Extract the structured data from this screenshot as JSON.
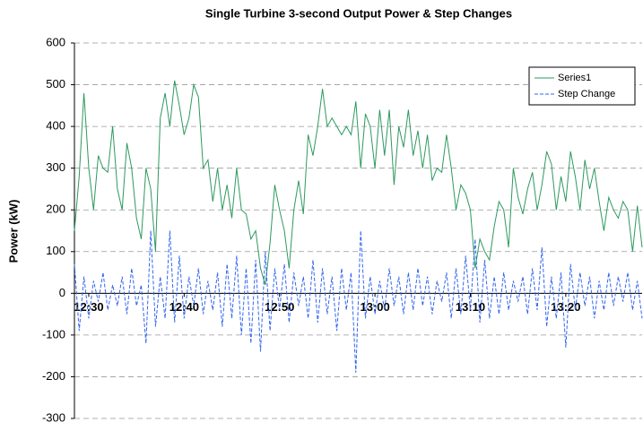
{
  "chart_data": {
    "type": "line",
    "title": "Single Turbine 3-second Output Power & Step Changes",
    "y_label": "Power (kW)",
    "categories": [
      null,
      null,
      null,
      "12:30",
      null,
      null,
      null,
      null,
      null,
      null,
      null,
      null,
      null,
      null,
      null,
      null,
      null,
      null,
      null,
      null,
      null,
      null,
      null,
      "12:40",
      null,
      null,
      null,
      null,
      null,
      null,
      null,
      null,
      null,
      null,
      null,
      null,
      null,
      null,
      null,
      null,
      null,
      null,
      null,
      "12:50",
      null,
      null,
      null,
      null,
      null,
      null,
      null,
      null,
      null,
      null,
      null,
      null,
      null,
      null,
      null,
      null,
      null,
      null,
      null,
      "13:00",
      null,
      null,
      null,
      null,
      null,
      null,
      null,
      null,
      null,
      null,
      null,
      null,
      null,
      null,
      null,
      null,
      null,
      null,
      null,
      "13:10",
      null,
      null,
      null,
      null,
      null,
      null,
      null,
      null,
      null,
      null,
      null,
      null,
      null,
      null,
      null,
      null,
      null,
      null,
      null,
      "13:20",
      null,
      null,
      null,
      null,
      null,
      null,
      null,
      null,
      null,
      null,
      null,
      null,
      null,
      null,
      null,
      null
    ],
    "series": [
      {
        "name": "Series1",
        "color": "#2e9960",
        "dashed": false,
        "values": [
          150,
          280,
          480,
          300,
          200,
          330,
          300,
          290,
          400,
          250,
          200,
          360,
          300,
          180,
          130,
          300,
          250,
          100,
          420,
          480,
          400,
          510,
          450,
          380,
          420,
          500,
          470,
          300,
          320,
          220,
          300,
          200,
          260,
          180,
          300,
          200,
          190,
          130,
          150,
          60,
          20,
          120,
          260,
          200,
          150,
          60,
          200,
          270,
          190,
          380,
          330,
          400,
          490,
          400,
          420,
          400,
          380,
          400,
          380,
          460,
          300,
          430,
          400,
          300,
          440,
          330,
          440,
          260,
          400,
          350,
          440,
          330,
          390,
          300,
          380,
          270,
          300,
          290,
          380,
          300,
          200,
          260,
          240,
          200,
          60,
          130,
          100,
          80,
          160,
          220,
          200,
          110,
          300,
          230,
          190,
          250,
          290,
          200,
          260,
          340,
          310,
          200,
          280,
          220,
          340,
          280,
          200,
          320,
          250,
          300,
          220,
          150,
          230,
          200,
          180,
          220,
          200,
          100,
          210,
          110
        ]
      },
      {
        "name": "Step Change",
        "color": "#3366ee",
        "dashed": true,
        "values": [
          70,
          -90,
          40,
          -60,
          30,
          -20,
          50,
          -40,
          20,
          -30,
          40,
          -50,
          60,
          -30,
          20,
          -120,
          150,
          -80,
          40,
          -60,
          150,
          -70,
          90,
          -60,
          40,
          -30,
          60,
          -50,
          30,
          -40,
          50,
          -80,
          70,
          -60,
          90,
          -100,
          60,
          -120,
          80,
          -140,
          100,
          -90,
          60,
          -40,
          70,
          -70,
          50,
          -30,
          40,
          -60,
          80,
          -70,
          60,
          -50,
          40,
          -90,
          60,
          -40,
          50,
          -190,
          150,
          -60,
          40,
          -50,
          30,
          -40,
          60,
          -30,
          40,
          -50,
          50,
          -40,
          60,
          -30,
          40,
          -50,
          30,
          -20,
          50,
          -60,
          60,
          -50,
          90,
          -40,
          130,
          -70,
          80,
          -60,
          40,
          -50,
          50,
          -40,
          30,
          -20,
          40,
          -50,
          60,
          -40,
          110,
          -80,
          40,
          -60,
          50,
          -130,
          70,
          -40,
          50,
          -30,
          40,
          -60,
          30,
          -40,
          50,
          -30,
          40,
          -20,
          50,
          -40,
          30,
          -60
        ]
      }
    ],
    "ylim": [
      -300,
      600
    ],
    "yticks": [
      -300,
      -200,
      -100,
      0,
      100,
      200,
      300,
      400,
      500,
      600
    ],
    "grid": true,
    "legend": "top-right"
  }
}
